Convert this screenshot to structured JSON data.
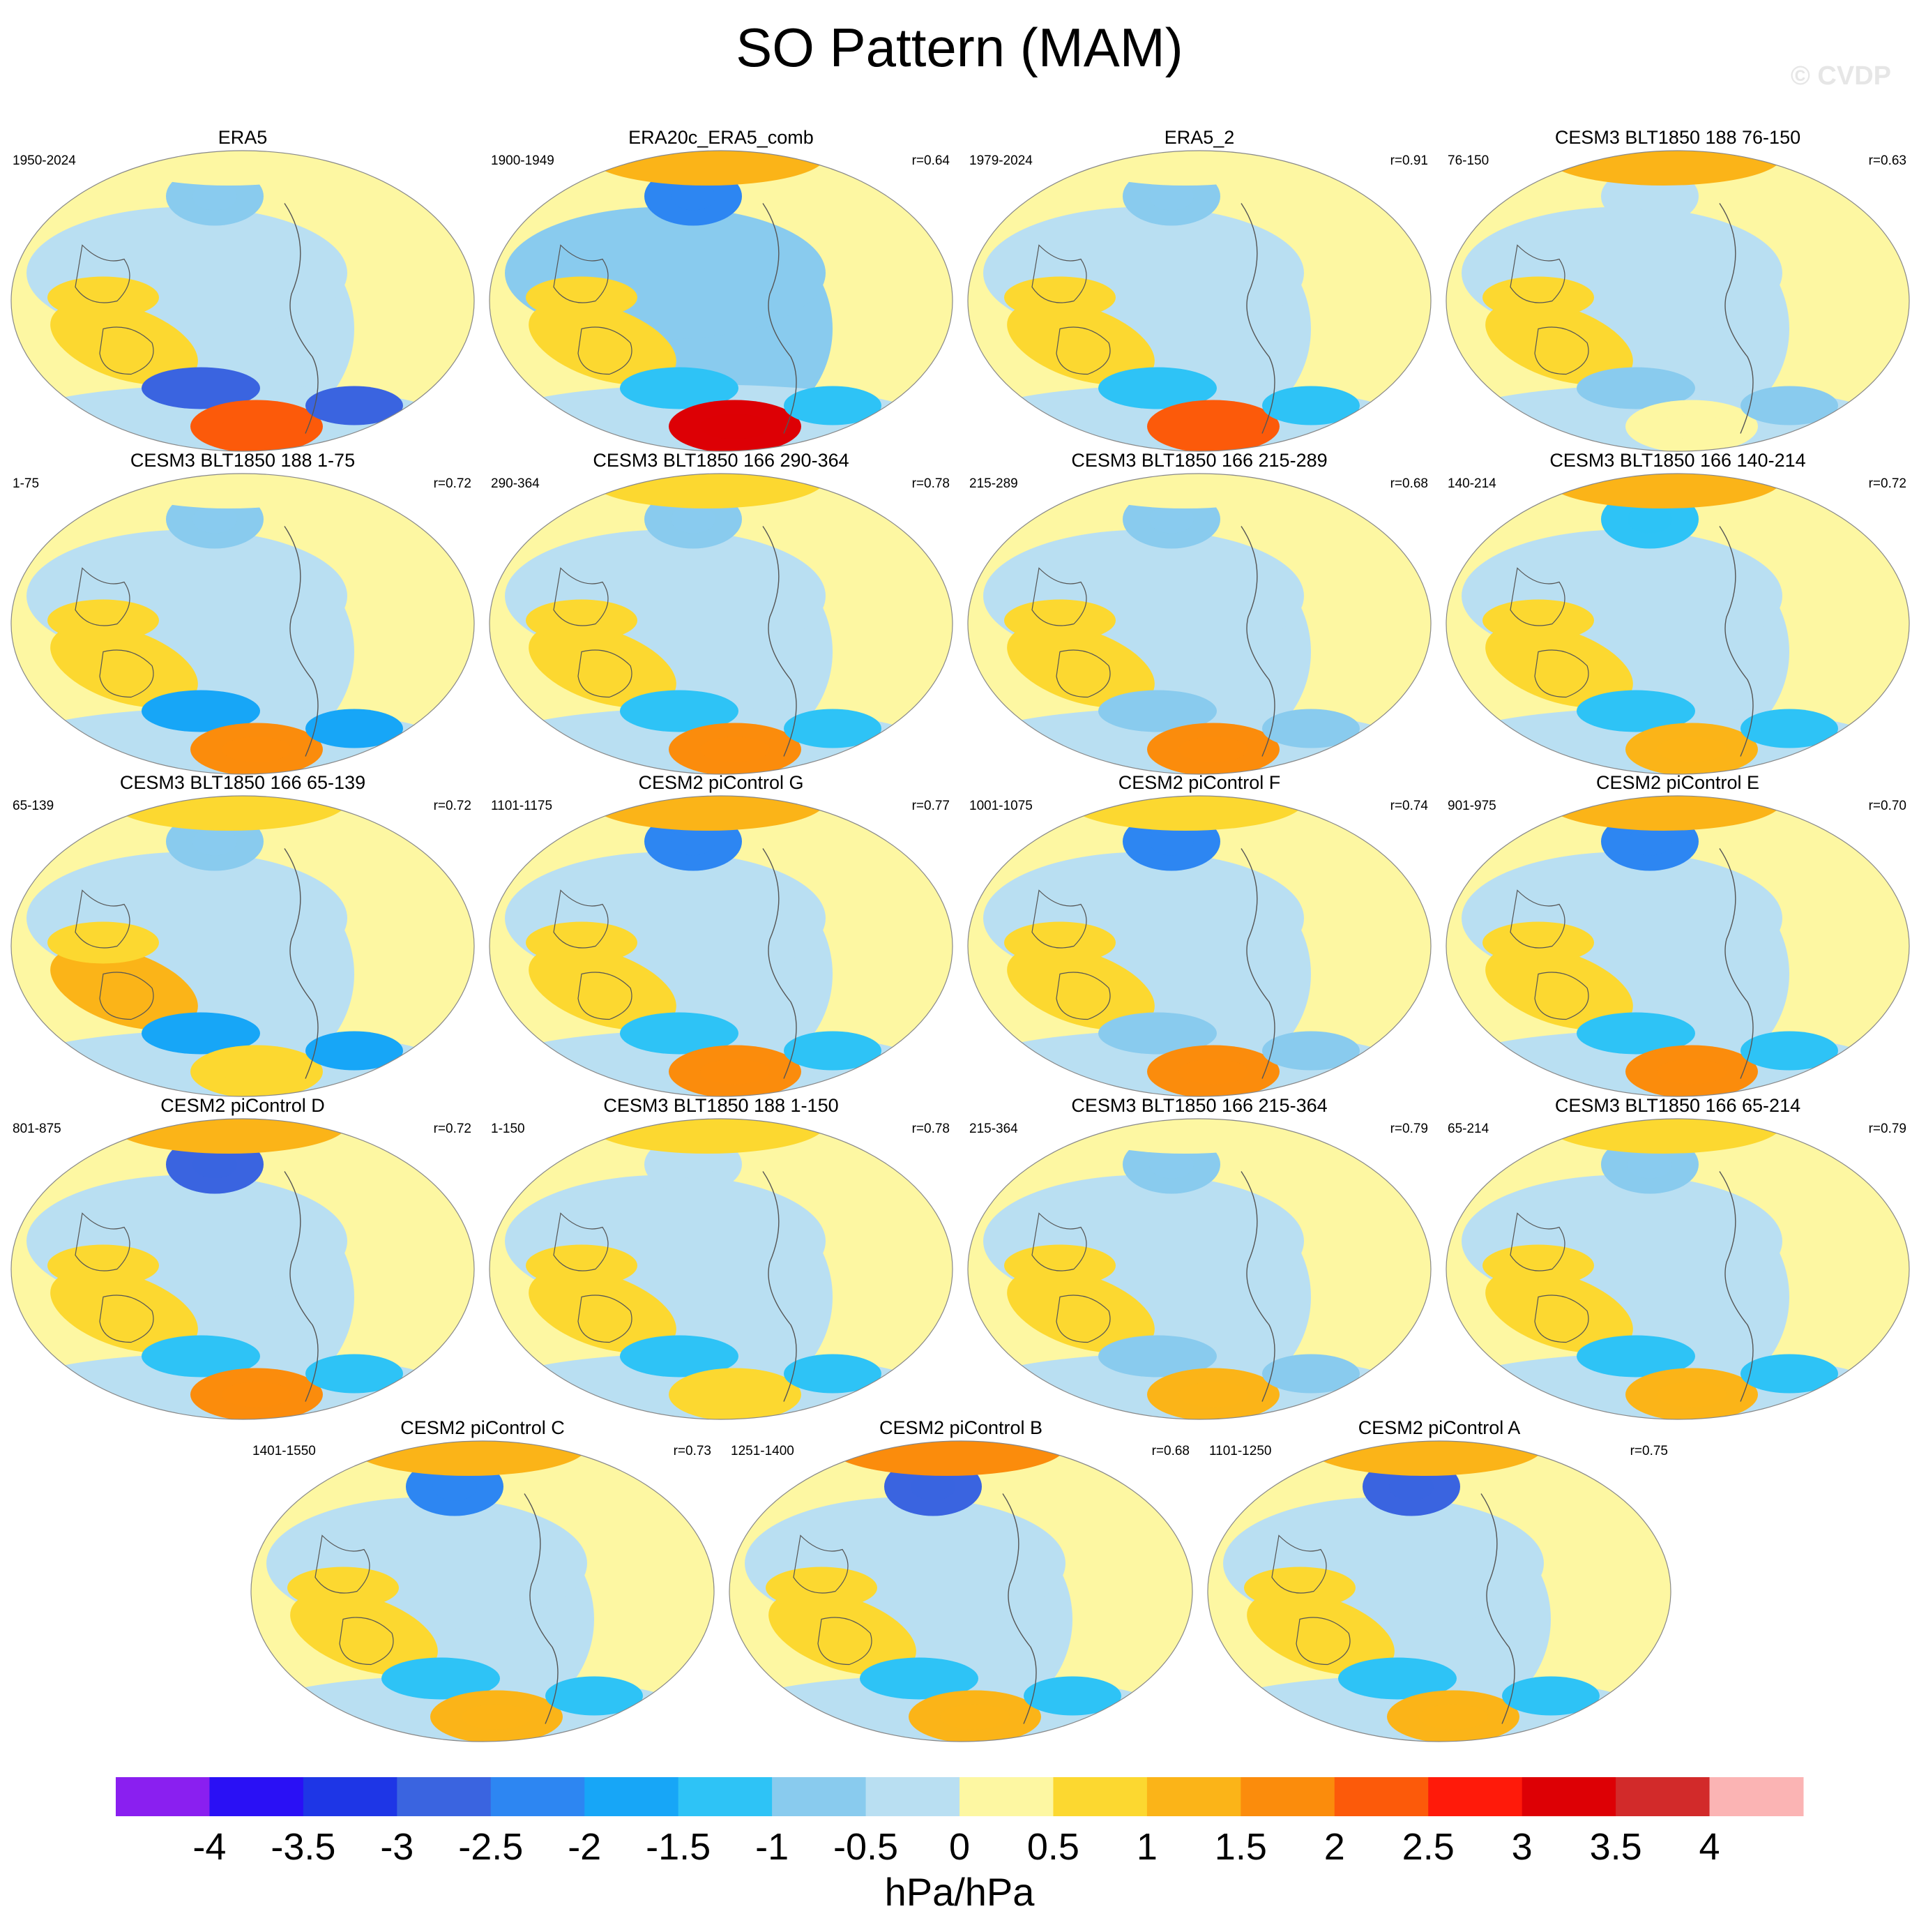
{
  "title": "SO Pattern (MAM)",
  "watermark": "© CVDP",
  "chart_data": {
    "type": "contour-map-grid",
    "units": "hPa/hPa",
    "colorbar": {
      "levels": [
        "-4",
        "-3.5",
        "-3",
        "-2.5",
        "-2",
        "-1.5",
        "-1",
        "-0.5",
        "0",
        "0.5",
        "1",
        "1.5",
        "2",
        "2.5",
        "3",
        "3.5",
        "4"
      ],
      "colors": [
        "#8a1ff0",
        "#2a10f5",
        "#1e36e6",
        "#3a64e0",
        "#2d86f2",
        "#17a6f7",
        "#2ec3f6",
        "#89cbee",
        "#b9dff2",
        "#fdf7a2",
        "#fcd830",
        "#fbb418",
        "#fb8c0c",
        "#fc5a0a",
        "#ff1a0a",
        "#dd0005",
        "#d22a2a",
        "#fbb4b4"
      ]
    },
    "panels": [
      {
        "name": "ERA5",
        "period": "1950-2024",
        "r": "",
        "features": {
          "npac": "#89cbee",
          "arctic": "#fdf7a2",
          "austr": "#fcd830",
          "sam_lo": "#3a64e0",
          "sam_hi": "#fc5a0a",
          "tropics": "#b9dff2"
        }
      },
      {
        "name": "ERA20c_ERA5_comb",
        "period": "1900-1949",
        "r": "r=0.64",
        "features": {
          "npac": "#2d86f2",
          "arctic": "#fbb418",
          "austr": "#fcd830",
          "sam_lo": "#2ec3f6",
          "sam_hi": "#dd0005",
          "tropics": "#89cbee"
        }
      },
      {
        "name": "ERA5_2",
        "period": "1979-2024",
        "r": "r=0.91",
        "features": {
          "npac": "#89cbee",
          "arctic": "#fdf7a2",
          "austr": "#fcd830",
          "sam_lo": "#2ec3f6",
          "sam_hi": "#fc5a0a",
          "tropics": "#b9dff2"
        }
      },
      {
        "name": "CESM3 BLT1850 188 76-150",
        "period": "76-150",
        "r": "r=0.63",
        "features": {
          "npac": "#b9dff2",
          "arctic": "#fbb418",
          "austr": "#fcd830",
          "sam_lo": "#89cbee",
          "sam_hi": "#fdf7a2",
          "tropics": "#b9dff2"
        }
      },
      {
        "name": "CESM3 BLT1850 188 1-75",
        "period": "1-75",
        "r": "r=0.72",
        "features": {
          "npac": "#89cbee",
          "arctic": "#fdf7a2",
          "austr": "#fcd830",
          "sam_lo": "#17a6f7",
          "sam_hi": "#fb8c0c",
          "tropics": "#b9dff2"
        }
      },
      {
        "name": "CESM3 BLT1850 166 290-364",
        "period": "290-364",
        "r": "r=0.78",
        "features": {
          "npac": "#89cbee",
          "arctic": "#fcd830",
          "austr": "#fcd830",
          "sam_lo": "#2ec3f6",
          "sam_hi": "#fb8c0c",
          "tropics": "#b9dff2"
        }
      },
      {
        "name": "CESM3 BLT1850 166 215-289",
        "period": "215-289",
        "r": "r=0.68",
        "features": {
          "npac": "#89cbee",
          "arctic": "#fdf7a2",
          "austr": "#fcd830",
          "sam_lo": "#89cbee",
          "sam_hi": "#fb8c0c",
          "tropics": "#b9dff2"
        }
      },
      {
        "name": "CESM3 BLT1850 166 140-214",
        "period": "140-214",
        "r": "r=0.72",
        "features": {
          "npac": "#2ec3f6",
          "arctic": "#fbb418",
          "austr": "#fcd830",
          "sam_lo": "#2ec3f6",
          "sam_hi": "#fbb418",
          "tropics": "#b9dff2"
        }
      },
      {
        "name": "CESM3 BLT1850 166 65-139",
        "period": "65-139",
        "r": "r=0.72",
        "features": {
          "npac": "#89cbee",
          "arctic": "#fcd830",
          "austr": "#fbb418",
          "sam_lo": "#17a6f7",
          "sam_hi": "#fcd830",
          "tropics": "#b9dff2"
        }
      },
      {
        "name": "CESM2 piControl G",
        "period": "1101-1175",
        "r": "r=0.77",
        "features": {
          "npac": "#2d86f2",
          "arctic": "#fbb418",
          "austr": "#fcd830",
          "sam_lo": "#2ec3f6",
          "sam_hi": "#fb8c0c",
          "tropics": "#b9dff2"
        }
      },
      {
        "name": "CESM2 piControl F",
        "period": "1001-1075",
        "r": "r=0.74",
        "features": {
          "npac": "#2d86f2",
          "arctic": "#fcd830",
          "austr": "#fcd830",
          "sam_lo": "#89cbee",
          "sam_hi": "#fb8c0c",
          "tropics": "#b9dff2"
        }
      },
      {
        "name": "CESM2 piControl E",
        "period": "901-975",
        "r": "r=0.70",
        "features": {
          "npac": "#2d86f2",
          "arctic": "#fbb418",
          "austr": "#fcd830",
          "sam_lo": "#2ec3f6",
          "sam_hi": "#fb8c0c",
          "tropics": "#b9dff2"
        }
      },
      {
        "name": "CESM2 piControl D",
        "period": "801-875",
        "r": "r=0.72",
        "features": {
          "npac": "#3a64e0",
          "arctic": "#fbb418",
          "austr": "#fcd830",
          "sam_lo": "#2ec3f6",
          "sam_hi": "#fb8c0c",
          "tropics": "#b9dff2"
        }
      },
      {
        "name": "CESM3 BLT1850 188 1-150",
        "period": "1-150",
        "r": "r=0.78",
        "features": {
          "npac": "#b9dff2",
          "arctic": "#fcd830",
          "austr": "#fcd830",
          "sam_lo": "#2ec3f6",
          "sam_hi": "#fcd830",
          "tropics": "#b9dff2"
        }
      },
      {
        "name": "CESM3 BLT1850 166 215-364",
        "period": "215-364",
        "r": "r=0.79",
        "features": {
          "npac": "#89cbee",
          "arctic": "#fdf7a2",
          "austr": "#fcd830",
          "sam_lo": "#89cbee",
          "sam_hi": "#fbb418",
          "tropics": "#b9dff2"
        }
      },
      {
        "name": "CESM3 BLT1850 166 65-214",
        "period": "65-214",
        "r": "r=0.79",
        "features": {
          "npac": "#89cbee",
          "arctic": "#fcd830",
          "austr": "#fcd830",
          "sam_lo": "#2ec3f6",
          "sam_hi": "#fbb418",
          "tropics": "#b9dff2"
        }
      },
      {
        "name": "CESM2 piControl C",
        "period": "1401-1550",
        "r": "r=0.73",
        "features": {
          "npac": "#2d86f2",
          "arctic": "#fbb418",
          "austr": "#fcd830",
          "sam_lo": "#2ec3f6",
          "sam_hi": "#fbb418",
          "tropics": "#b9dff2"
        }
      },
      {
        "name": "CESM2 piControl B",
        "period": "1251-1400",
        "r": "r=0.68",
        "features": {
          "npac": "#3a64e0",
          "arctic": "#fb8c0c",
          "austr": "#fcd830",
          "sam_lo": "#2ec3f6",
          "sam_hi": "#fbb418",
          "tropics": "#b9dff2"
        }
      },
      {
        "name": "CESM2 piControl A",
        "period": "1101-1250",
        "r": "r=0.75",
        "features": {
          "npac": "#3a64e0",
          "arctic": "#fbb418",
          "austr": "#fcd830",
          "sam_lo": "#2ec3f6",
          "sam_hi": "#fbb418",
          "tropics": "#b9dff2"
        }
      }
    ]
  }
}
